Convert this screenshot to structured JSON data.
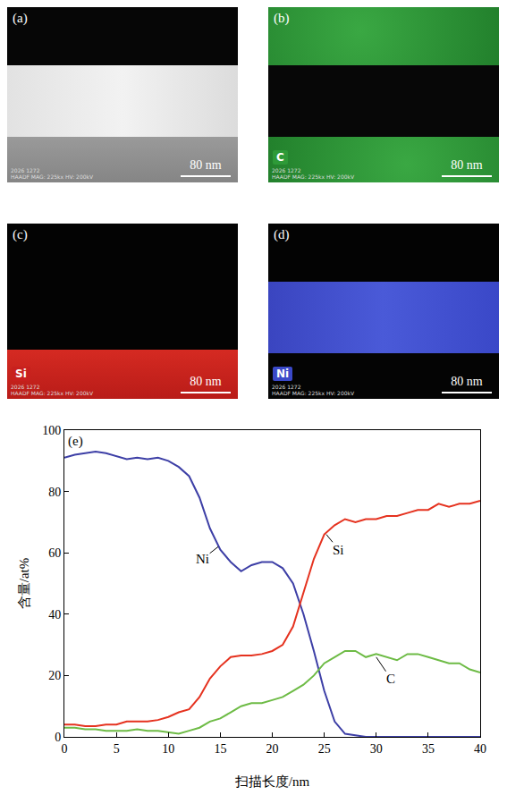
{
  "panels": [
    {
      "label": "(a)",
      "scale_bar": "80 nm",
      "caption": [
        "2026 1272",
        "HAADF MAG: 225kx HV: 200kV"
      ]
    },
    {
      "label": "(b)",
      "element": "C",
      "scale_bar": "80 nm",
      "caption": [
        "2026 1272",
        "HAADF MAG: 225kx HV: 200kV"
      ]
    },
    {
      "label": "(c)",
      "element": "Si",
      "scale_bar": "80 nm",
      "caption": [
        "2026 1272",
        "HAADF MAG: 225kx HV: 200kV"
      ]
    },
    {
      "label": "(d)",
      "element": "Ni",
      "scale_bar": "80 nm",
      "caption": [
        "2026 1272",
        "HAADF MAG: 225kx HV: 200kV"
      ]
    }
  ],
  "chart_data": {
    "type": "line",
    "panel_label": "(e)",
    "x_label": "扫描长度/nm",
    "y_label": "含量/at%",
    "x": [
      0,
      1,
      2,
      3,
      4,
      5,
      6,
      7,
      8,
      9,
      10,
      11,
      12,
      13,
      14,
      15,
      16,
      17,
      18,
      19,
      20,
      21,
      22,
      23,
      24,
      25,
      26,
      27,
      28,
      29,
      30,
      31,
      32,
      33,
      34,
      35,
      36,
      37,
      38,
      39,
      40
    ],
    "series": [
      {
        "name": "Ni",
        "color": "#3d3fa6",
        "values": [
          91,
          92,
          92.5,
          93,
          92.5,
          91.5,
          90.5,
          91,
          90.5,
          91,
          90,
          88,
          85,
          78,
          68,
          61,
          57,
          54,
          56,
          57,
          57,
          55,
          50,
          40,
          28,
          15,
          5,
          1,
          0.5,
          0,
          0,
          0,
          0,
          0,
          0,
          0,
          0,
          0,
          0,
          0,
          0
        ]
      },
      {
        "name": "Si",
        "color": "#e5321f",
        "values": [
          4,
          4,
          3.5,
          3.5,
          4,
          4,
          5,
          5,
          5,
          5.5,
          6.5,
          8,
          9,
          13,
          19,
          23,
          26,
          26.5,
          26.5,
          27,
          28,
          30,
          36,
          47,
          58,
          66,
          69,
          71,
          70,
          71,
          71,
          72,
          72,
          73,
          74,
          74,
          76,
          75,
          76,
          76,
          77
        ]
      },
      {
        "name": "C",
        "color": "#6dbb45",
        "values": [
          3,
          3,
          2.5,
          2.5,
          2,
          2,
          2,
          2.5,
          2,
          2,
          1.5,
          1,
          2,
          3,
          5,
          6,
          8,
          10,
          11,
          11,
          12,
          13,
          15,
          17,
          20,
          24,
          26,
          28,
          28,
          26,
          27,
          26,
          25,
          27,
          27,
          26,
          25,
          24,
          24,
          22,
          21
        ]
      }
    ],
    "annotations": [
      {
        "text": "Ni",
        "x": 13.3,
        "y": 58,
        "target": [
          14.8,
          62
        ]
      },
      {
        "text": "Si",
        "x": 26.4,
        "y": 61,
        "target": [
          25.2,
          66
        ]
      },
      {
        "text": "C",
        "x": 31.4,
        "y": 19,
        "target": [
          30,
          26
        ]
      }
    ],
    "xlim": [
      0,
      40
    ],
    "xticks": [
      0,
      5,
      10,
      15,
      20,
      25,
      30,
      35,
      40
    ],
    "ylim": [
      0,
      100
    ],
    "yticks": [
      0,
      20,
      40,
      60,
      80,
      100
    ],
    "grid": false
  }
}
